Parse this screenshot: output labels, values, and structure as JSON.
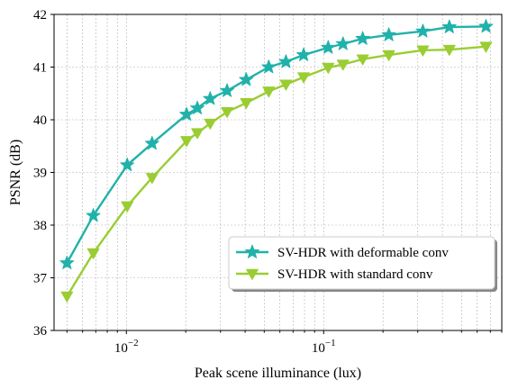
{
  "chart_data": {
    "type": "line",
    "xlabel": "Peak scene illuminance (lux)",
    "ylabel": "PSNR (dB)",
    "xscale": "log",
    "xlim": [
      0.0043,
      0.8
    ],
    "ylim": [
      36,
      42
    ],
    "yticks": [
      36,
      37,
      38,
      39,
      40,
      41,
      42
    ],
    "xticks": [
      {
        "value": 0.01,
        "base": "10",
        "exp": "−2"
      },
      {
        "value": 0.1,
        "base": "10",
        "exp": "−1"
      }
    ],
    "grid": true,
    "legend": {
      "position": "lower-right"
    },
    "series": [
      {
        "name": "SV-HDR with deformable conv",
        "color": "#20b2aa",
        "marker": "star",
        "x": [
          0.005,
          0.0068,
          0.0101,
          0.0135,
          0.0202,
          0.0229,
          0.0266,
          0.0324,
          0.0405,
          0.0527,
          0.0644,
          0.0792,
          0.1055,
          0.1254,
          0.1578,
          0.2141,
          0.3185,
          0.4337,
          0.6652
        ],
        "y": [
          37.28,
          38.18,
          39.14,
          39.55,
          40.1,
          40.22,
          40.4,
          40.55,
          40.76,
          41.0,
          41.1,
          41.23,
          41.37,
          41.44,
          41.54,
          41.61,
          41.68,
          41.76,
          41.77
        ]
      },
      {
        "name": "SV-HDR with standard conv",
        "color": "#9acd32",
        "marker": "triangle-down",
        "x": [
          0.005,
          0.0068,
          0.0101,
          0.0135,
          0.0202,
          0.0229,
          0.0266,
          0.0324,
          0.0405,
          0.0527,
          0.0644,
          0.0792,
          0.1055,
          0.1254,
          0.1578,
          0.2141,
          0.3185,
          0.4337,
          0.6652
        ],
        "y": [
          36.65,
          37.47,
          38.36,
          38.9,
          39.6,
          39.75,
          39.93,
          40.15,
          40.32,
          40.54,
          40.67,
          40.81,
          40.99,
          41.05,
          41.15,
          41.23,
          41.32,
          41.33,
          41.39
        ]
      }
    ]
  }
}
